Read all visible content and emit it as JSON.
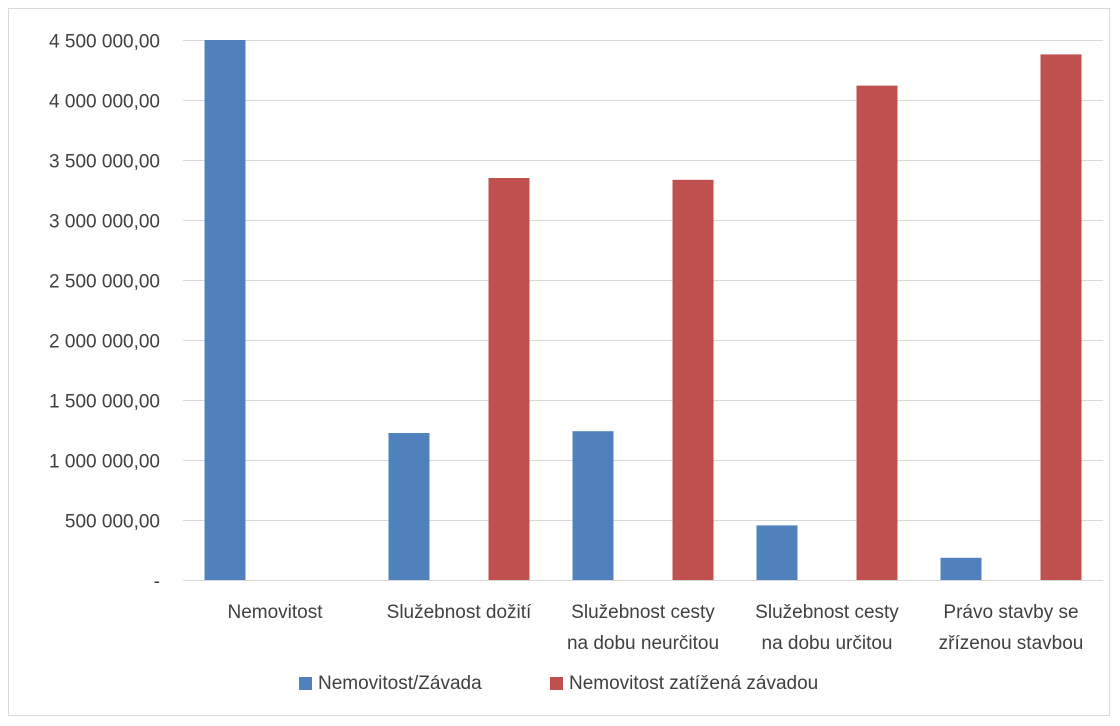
{
  "chart_data": {
    "type": "bar",
    "categories": [
      [
        "Nemovitost"
      ],
      [
        "Služebnost dožití"
      ],
      [
        "Služebnost cesty",
        "na dobu neurčitou"
      ],
      [
        "Služebnost cesty",
        "na dobu určitou"
      ],
      [
        "Právo stavby se",
        "zřízenou stavbou"
      ]
    ],
    "series": [
      {
        "name": "Nemovitost/Závada",
        "color": "#4f81bd",
        "values": [
          4500000,
          1225000,
          1240000,
          455000,
          185000
        ]
      },
      {
        "name": "Nemovitost zatížená závadou",
        "color": "#c0504d",
        "values": [
          null,
          3350000,
          3335000,
          4120000,
          4380000
        ]
      }
    ],
    "ylim": [
      0,
      4500000
    ],
    "y_ticks": [
      {
        "value": 4500000,
        "label": "4 500 000,00"
      },
      {
        "value": 4000000,
        "label": "4 000 000,00"
      },
      {
        "value": 3500000,
        "label": "3 500 000,00"
      },
      {
        "value": 3000000,
        "label": "3 000 000,00"
      },
      {
        "value": 2500000,
        "label": "2 500 000,00"
      },
      {
        "value": 2000000,
        "label": "2 000 000,00"
      },
      {
        "value": 1500000,
        "label": "1 500 000,00"
      },
      {
        "value": 1000000,
        "label": "1 000 000,00"
      },
      {
        "value": 500000,
        "label": "500 000,00"
      },
      {
        "value": 0,
        "label": "-"
      }
    ],
    "grid": true,
    "legend_position": "bottom",
    "title": "",
    "xlabel": "",
    "ylabel": ""
  }
}
